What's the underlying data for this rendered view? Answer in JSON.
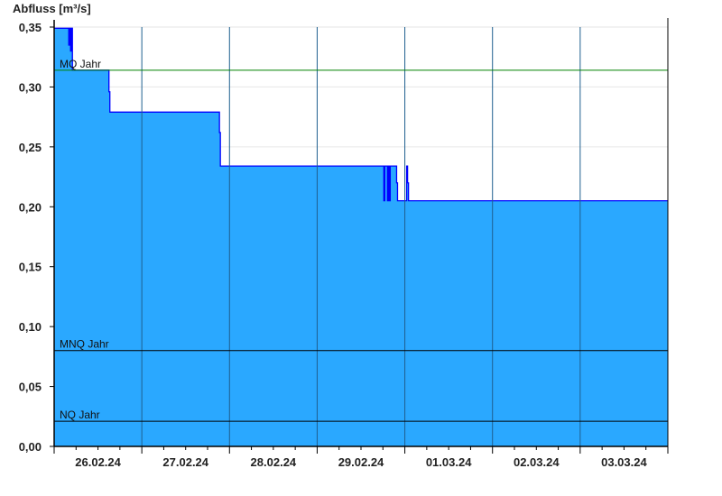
{
  "chart_data": {
    "type": "area",
    "ylabel": "Abfluss [m³/s]",
    "xlabel": "",
    "ylim": [
      0,
      0.35
    ],
    "xlim": [
      "2024-02-26 00:00",
      "2024-03-04 00:00"
    ],
    "y_ticks": [
      "0,00",
      "0,05",
      "0,10",
      "0,15",
      "0,20",
      "0,25",
      "0,30",
      "0,35"
    ],
    "y_tick_values": [
      0,
      0.05,
      0.1,
      0.15,
      0.2,
      0.25,
      0.3,
      0.35
    ],
    "x_tick_labels": [
      "26.02.24",
      "27.02.24",
      "28.02.24",
      "29.02.24",
      "01.03.24",
      "02.03.24",
      "03.03.24"
    ],
    "grid": true,
    "step": true,
    "fill_color": "#2aa8ff",
    "line_color": "#0000ff",
    "series": [
      {
        "points": [
          [
            "2024-02-26 00:00",
            0.349
          ],
          [
            "2024-02-26 04:00",
            0.335
          ],
          [
            "2024-02-26 04:15",
            0.349
          ],
          [
            "2024-02-26 04:30",
            0.33
          ],
          [
            "2024-02-26 04:45",
            0.349
          ],
          [
            "2024-02-26 05:00",
            0.314
          ],
          [
            "2024-02-26 15:00",
            0.296
          ],
          [
            "2024-02-26 15:15",
            0.279
          ],
          [
            "2024-02-27 21:15",
            0.262
          ],
          [
            "2024-02-27 21:30",
            0.234
          ],
          [
            "2024-02-29 18:15",
            0.205
          ],
          [
            "2024-02-29 18:30",
            0.234
          ],
          [
            "2024-02-29 19:15",
            0.205
          ],
          [
            "2024-02-29 19:30",
            0.234
          ],
          [
            "2024-02-29 19:45",
            0.205
          ],
          [
            "2024-02-29 20:00",
            0.234
          ],
          [
            "2024-02-29 21:45",
            0.22
          ],
          [
            "2024-02-29 22:00",
            0.205
          ],
          [
            "2024-03-01 00:30",
            0.234
          ],
          [
            "2024-03-01 00:45",
            0.22
          ],
          [
            "2024-03-01 01:00",
            0.205
          ],
          [
            "2024-03-04 00:00",
            0.205
          ]
        ]
      }
    ],
    "reference_lines": [
      {
        "label": "MQ Jahr",
        "value": 0.314,
        "color": "#008000"
      },
      {
        "label": "MNQ Jahr",
        "value": 0.08,
        "color": "#000000"
      },
      {
        "label": "NQ Jahr",
        "value": 0.021,
        "color": "#000000"
      }
    ]
  }
}
